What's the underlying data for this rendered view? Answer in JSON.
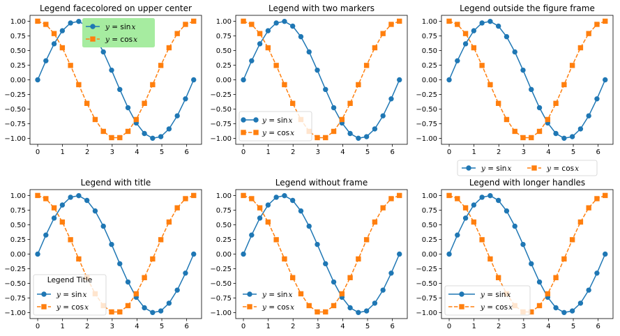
{
  "chart_data": [
    {
      "type": "line",
      "title": "Legend facecolored on upper center",
      "legend": {
        "placement": "upper-center",
        "facecolor": "#a6eca0",
        "frame": true,
        "title": "",
        "layout": "column"
      },
      "panel": 0
    },
    {
      "type": "line",
      "title": "Legend with two markers",
      "legend": {
        "placement": "lower-left",
        "frame": true,
        "title": "",
        "layout": "column",
        "two_markers": true
      },
      "panel": 1
    },
    {
      "type": "line",
      "title": "Legend outside the figure frame",
      "legend": {
        "placement": "below-axes",
        "frame": true,
        "title": "",
        "layout": "row"
      },
      "panel": 2
    },
    {
      "type": "line",
      "title": "Legend with title",
      "legend": {
        "placement": "lower-left",
        "frame": true,
        "title": "Legend Title",
        "layout": "column"
      },
      "panel": 3
    },
    {
      "type": "line",
      "title": "Legend without frame",
      "legend": {
        "placement": "lower-left",
        "frame": false,
        "title": "",
        "layout": "column"
      },
      "panel": 4
    },
    {
      "type": "line",
      "title": "Legend with longer handles",
      "legend": {
        "placement": "lower-left",
        "frame": true,
        "title": "",
        "layout": "column",
        "long_handles": true
      },
      "panel": 5
    }
  ],
  "shared": {
    "x": [
      0,
      0.3307,
      0.6614,
      0.9921,
      1.3228,
      1.6535,
      1.9842,
      2.3149,
      2.6456,
      2.9762,
      3.3069,
      3.6376,
      3.9683,
      4.299,
      4.6297,
      4.9604,
      5.2911,
      5.6218,
      5.9525,
      6.2832
    ],
    "series": [
      {
        "name_prefix": "y",
        "name_eq": " = ",
        "name_func": "sin",
        "name_var": "x",
        "label": "y = sin x",
        "color": "#1f77b4",
        "marker": "circle",
        "linestyle": "solid",
        "values": [
          0,
          0.3247,
          0.6142,
          0.8372,
          0.9694,
          0.9966,
          0.9158,
          0.7357,
          0.4759,
          0.1646,
          -0.1646,
          -0.4759,
          -0.7357,
          -0.9158,
          -0.9966,
          -0.9694,
          -0.8372,
          -0.6142,
          -0.3247,
          0
        ]
      },
      {
        "name_prefix": "y",
        "name_eq": " = ",
        "name_func": "cos",
        "name_var": "x",
        "label": "y = cos x",
        "color": "#ff7f0e",
        "marker": "square",
        "linestyle": "dashed",
        "values": [
          1,
          0.9458,
          0.7891,
          0.5469,
          0.2455,
          -0.0826,
          -0.4017,
          -0.6773,
          -0.8795,
          -0.9864,
          -0.9864,
          -0.8795,
          -0.6773,
          -0.4017,
          -0.0826,
          0.2455,
          0.5469,
          0.7891,
          0.9458,
          1
        ]
      }
    ],
    "xlim": [
      -0.31,
      6.6
    ],
    "ylim": [
      -1.1,
      1.1
    ],
    "xticks": [
      0,
      1,
      2,
      3,
      4,
      5,
      6
    ],
    "xtick_labels": [
      "0",
      "1",
      "2",
      "3",
      "4",
      "5",
      "6"
    ],
    "yticks": [
      1.0,
      0.75,
      0.5,
      0.25,
      0.0,
      -0.25,
      -0.5,
      -0.75,
      -1.0
    ],
    "ytick_labels": [
      "1.00",
      "0.75",
      "0.50",
      "0.25",
      "0.00",
      "−0.25",
      "−0.50",
      "−0.75",
      "−1.00"
    ],
    "grid": false
  }
}
